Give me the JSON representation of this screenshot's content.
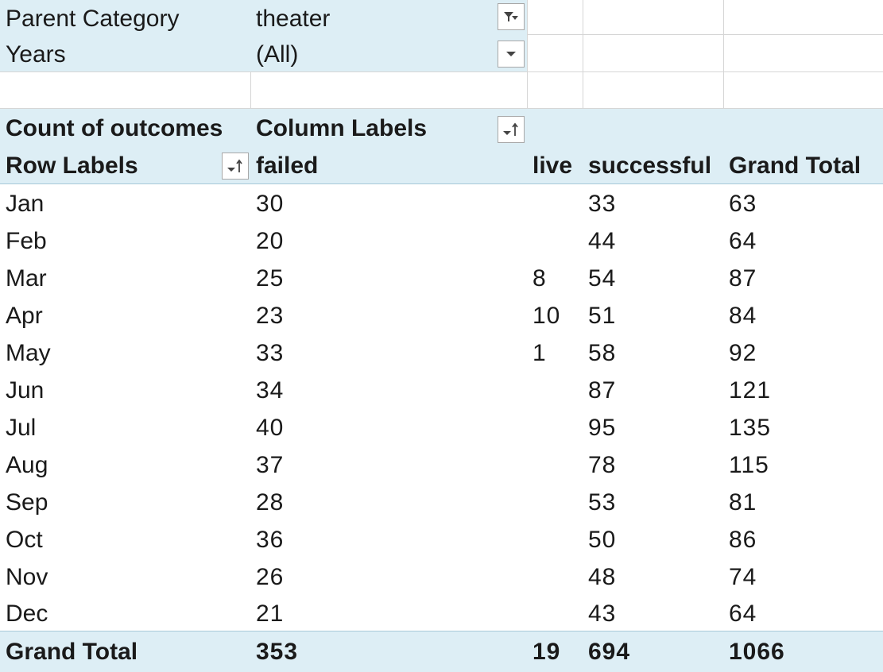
{
  "filters": [
    {
      "label": "Parent Category",
      "value": "theater",
      "filtered": true
    },
    {
      "label": "Years",
      "value": "(All)",
      "filtered": false
    }
  ],
  "pivot": {
    "corner_label": "Count of outcomes",
    "column_labels": "Column Labels",
    "row_labels": "Row Labels",
    "columns": [
      "failed",
      "live",
      "successful",
      "Grand Total"
    ],
    "rows": [
      {
        "label": "Jan",
        "failed": "30",
        "live": "",
        "successful": "33",
        "total": "63"
      },
      {
        "label": "Feb",
        "failed": "20",
        "live": "",
        "successful": "44",
        "total": "64"
      },
      {
        "label": "Mar",
        "failed": "25",
        "live": "8",
        "successful": "54",
        "total": "87"
      },
      {
        "label": "Apr",
        "failed": "23",
        "live": "10",
        "successful": "51",
        "total": "84"
      },
      {
        "label": "May",
        "failed": "33",
        "live": "1",
        "successful": "58",
        "total": "92"
      },
      {
        "label": "Jun",
        "failed": "34",
        "live": "",
        "successful": "87",
        "total": "121"
      },
      {
        "label": "Jul",
        "failed": "40",
        "live": "",
        "successful": "95",
        "total": "135"
      },
      {
        "label": "Aug",
        "failed": "37",
        "live": "",
        "successful": "78",
        "total": "115"
      },
      {
        "label": "Sep",
        "failed": "28",
        "live": "",
        "successful": "53",
        "total": "81"
      },
      {
        "label": "Oct",
        "failed": "36",
        "live": "",
        "successful": "50",
        "total": "86"
      },
      {
        "label": "Nov",
        "failed": "26",
        "live": "",
        "successful": "48",
        "total": "74"
      },
      {
        "label": "Dec",
        "failed": "21",
        "live": "",
        "successful": "43",
        "total": "64"
      }
    ],
    "grand_total": {
      "label": "Grand Total",
      "failed": "353",
      "live": "19",
      "successful": "694",
      "total": "1066"
    }
  },
  "icons": {
    "filter_applied": "filter-dropdown-icon",
    "dropdown": "chevron-down-icon",
    "sort": "sort-ascending-icon"
  },
  "colors": {
    "header_fill": "#ddeef5",
    "gridline": "#d6d6d6"
  }
}
